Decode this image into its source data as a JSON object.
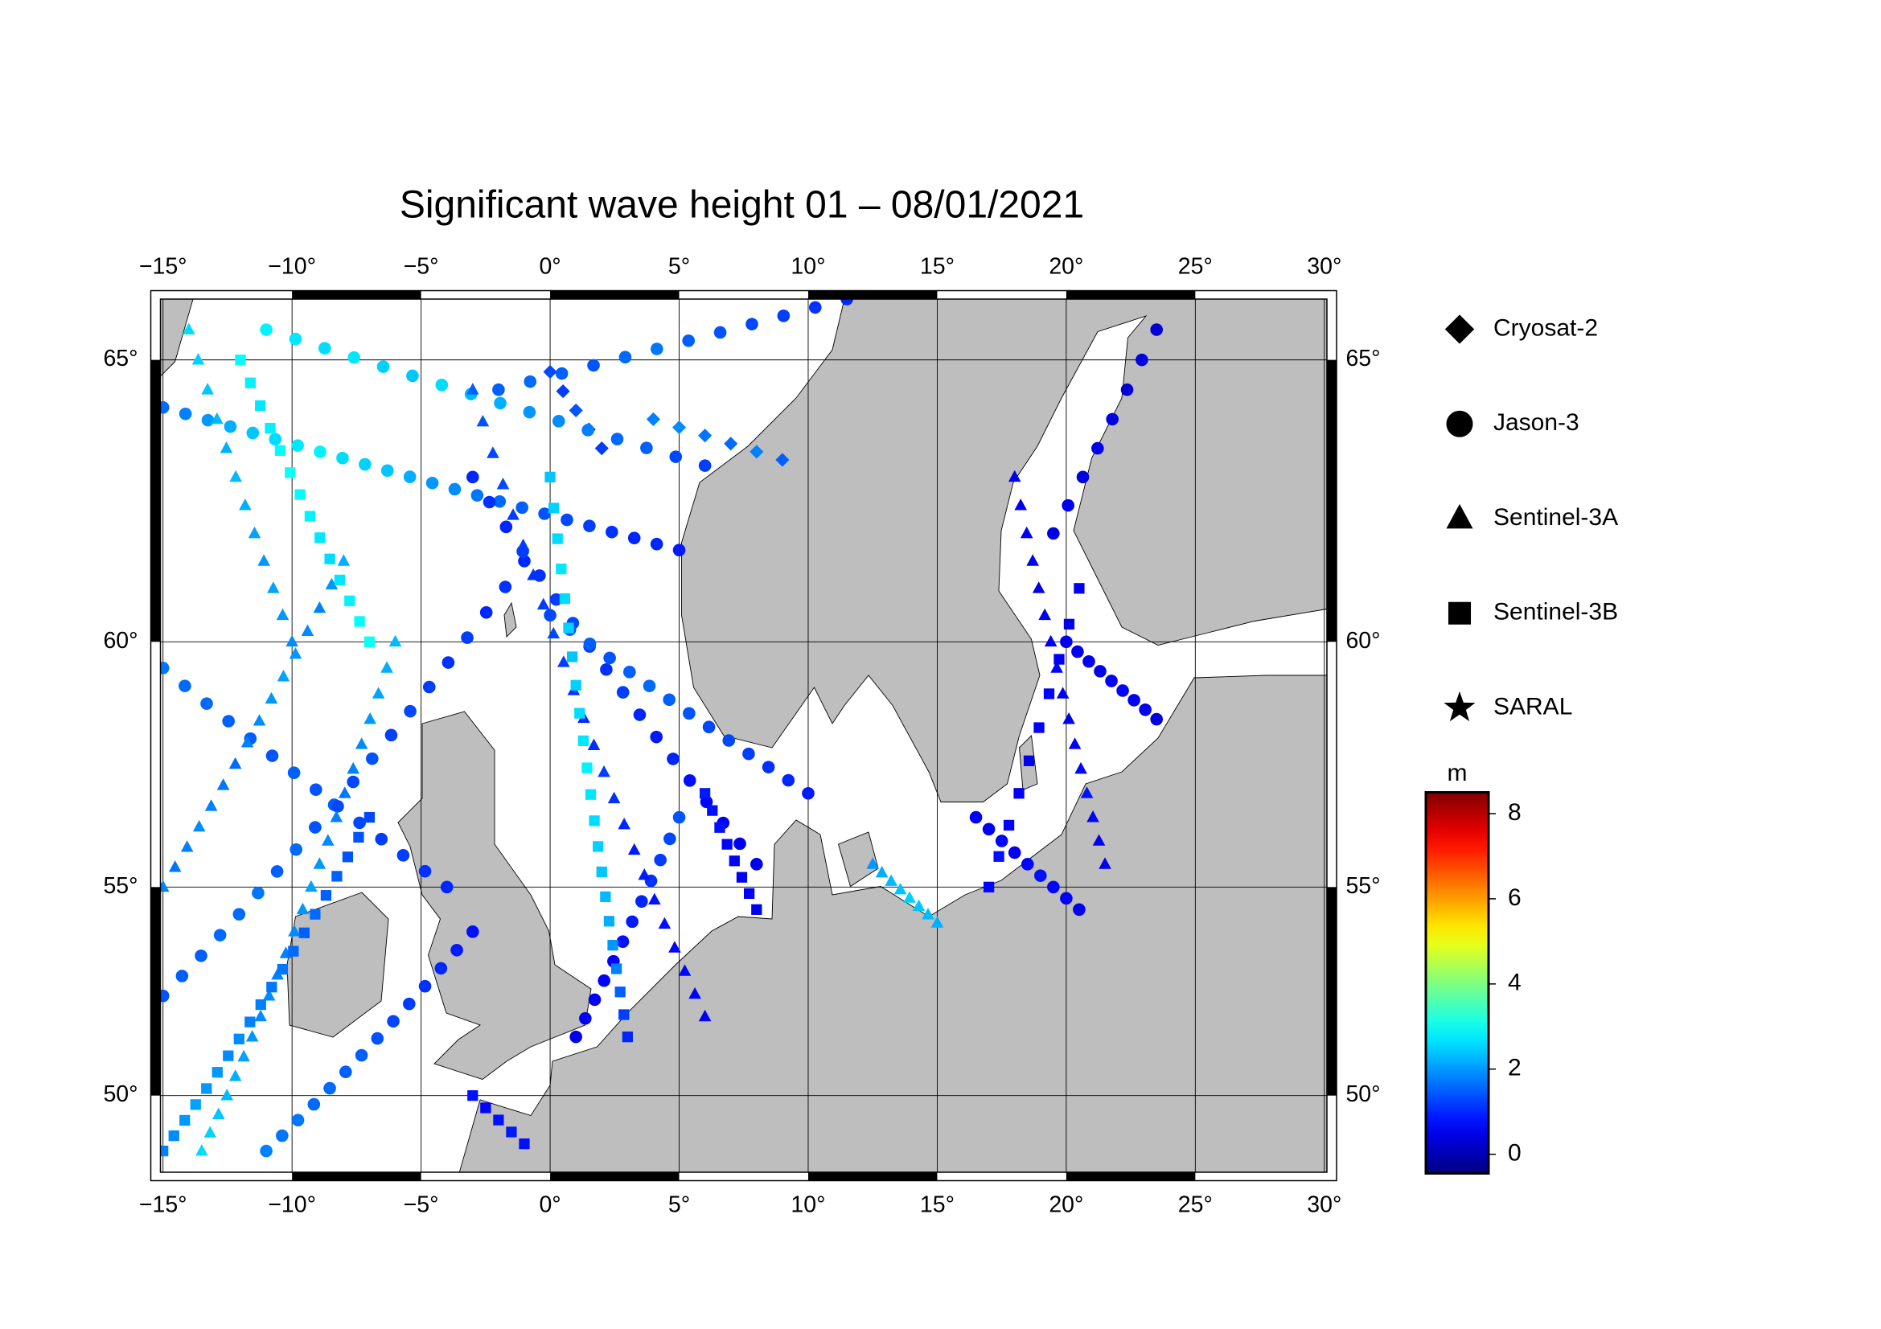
{
  "map": {
    "type": "scatter-map",
    "title": "Significant wave height 01 – 08/01/2021",
    "xlim": [
      -15.1,
      30.1
    ],
    "ylim": [
      47.9,
      66.0
    ],
    "xticks": [
      {
        "value": -15,
        "label": "−15°"
      },
      {
        "value": -10,
        "label": "−10°"
      },
      {
        "value": -5,
        "label": "−5°"
      },
      {
        "value": 0,
        "label": "0°"
      },
      {
        "value": 5,
        "label": "5°"
      },
      {
        "value": 10,
        "label": "10°"
      },
      {
        "value": 15,
        "label": "15°"
      },
      {
        "value": 20,
        "label": "20°"
      },
      {
        "value": 25,
        "label": "25°"
      },
      {
        "value": 30,
        "label": "30°"
      }
    ],
    "yticks": [
      {
        "value": 50,
        "label": "50°"
      },
      {
        "value": 55,
        "label": "55°"
      },
      {
        "value": 60,
        "label": "60°"
      },
      {
        "value": 65,
        "label": "65°"
      }
    ],
    "grid": true,
    "colorbar": {
      "unit": "m",
      "colormap": "jet",
      "clim": [
        -0.45,
        8.5
      ],
      "ticks": [
        0,
        2,
        4,
        6,
        8
      ]
    },
    "series": [
      {
        "name": "Cryosat-2",
        "marker": "diamond",
        "tracks": [
          {
            "lon": [
              4,
              9
            ],
            "lat": [
              64,
              63.3
            ],
            "values": [
              1.8,
              1.9,
              1.7,
              1.6,
              1.8,
              1.5
            ]
          },
          {
            "lon": [
              0,
              2
            ],
            "lat": [
              64.8,
              63.5
            ],
            "values": [
              1.3,
              1.2,
              1.4,
              1.1,
              1.2
            ]
          }
        ]
      },
      {
        "name": "Jason-3",
        "marker": "circle",
        "tracks": [
          {
            "lon": [
              -15,
              -1
            ],
            "lat": [
              52.5,
              61.5
            ],
            "values": [
              1.4,
              1.5,
              1.5,
              1.6,
              1.6,
              1.7,
              1.5,
              1.6,
              1.4,
              1.5,
              1.3,
              1.4,
              1.2,
              1.3,
              1.2,
              1.1,
              1.2,
              1.0,
              1.1,
              1.0
            ]
          },
          {
            "lon": [
              -15,
              5
            ],
            "lat": [
              64.2,
              61.7
            ],
            "values": [
              1.6,
              1.8,
              2.0,
              2.2,
              2.4,
              2.6,
              2.7,
              2.8,
              2.6,
              2.5,
              2.4,
              2.2,
              2.0,
              1.9,
              1.7,
              1.6,
              1.5,
              1.4,
              1.3,
              1.2,
              1.1,
              1.0,
              1.0,
              0.9
            ]
          },
          {
            "lon": [
              -15,
              -4
            ],
            "lat": [
              59.5,
              55
            ],
            "values": [
              1.7,
              1.6,
              1.6,
              1.5,
              1.5,
              1.4,
              1.5,
              1.4,
              1.3,
              1.3,
              1.2,
              1.2,
              1.1,
              1.0
            ]
          },
          {
            "lon": [
              -3,
              8
            ],
            "lat": [
              63,
              55.5
            ],
            "values": [
              1.0,
              1.1,
              1.0,
              1.2,
              1.1,
              1.2,
              1.3,
              1.2,
              1.1,
              1.2,
              1.0,
              0.9,
              1.0,
              0.8,
              0.7,
              0.6,
              0.6,
              0.5
            ]
          },
          {
            "lon": [
              0,
              10
            ],
            "lat": [
              60.5,
              57
            ],
            "values": [
              1.3,
              1.4,
              1.5,
              1.4,
              1.5,
              1.6,
              1.5,
              1.4,
              1.3,
              1.3,
              1.2,
              1.1,
              1.0,
              0.9
            ]
          },
          {
            "lon": [
              1,
              5
            ],
            "lat": [
              51.5,
              56.5
            ],
            "values": [
              0.5,
              0.6,
              0.6,
              0.7,
              0.7,
              0.8,
              0.9,
              1.0,
              1.1,
              1.2,
              1.3,
              1.4
            ]
          },
          {
            "lon": [
              -11,
              6
            ],
            "lat": [
              65.5,
              63.2
            ],
            "values": [
              2.8,
              2.7,
              2.6,
              2.7,
              2.5,
              2.4,
              2.6,
              2.3,
              2.2,
              2.0,
              1.9,
              1.8,
              1.6,
              1.5,
              1.3,
              1.2
            ]
          },
          {
            "lon": [
              -11,
              -3
            ],
            "lat": [
              48.5,
              54
            ],
            "values": [
              1.8,
              1.7,
              1.7,
              1.6,
              1.6,
              1.5,
              1.5,
              1.4,
              1.3,
              1.2,
              1.1,
              1.0,
              0.9,
              0.8
            ]
          },
          {
            "lon": [
              16.5,
              20.5
            ],
            "lat": [
              56.5,
              54.5
            ],
            "values": [
              0.6,
              0.6,
              0.7,
              0.6,
              0.7,
              0.8,
              0.7,
              0.6,
              0.5
            ]
          },
          {
            "lon": [
              20,
              23.5
            ],
            "lat": [
              60,
              58.5
            ],
            "values": [
              0.5,
              0.5,
              0.6,
              0.5,
              0.6,
              0.7,
              0.6,
              0.5,
              0.4
            ]
          },
          {
            "lon": [
              19.5,
              23.5
            ],
            "lat": [
              62,
              65.5
            ],
            "values": [
              0.4,
              0.5,
              0.4,
              0.5,
              0.4,
              0.3,
              0.4,
              0.3
            ]
          },
          {
            "lon": [
              -2,
              11.5
            ],
            "lat": [
              64.5,
              66
            ],
            "values": [
              1.5,
              1.6,
              1.5,
              1.4,
              1.6,
              1.7,
              1.5,
              1.4,
              1.3,
              1.2,
              1.1,
              1.0
            ]
          }
        ]
      },
      {
        "name": "Sentinel-3A",
        "marker": "triangle",
        "tracks": [
          {
            "lon": [
              -13.5,
              -6
            ],
            "lat": [
              48.5,
              60
            ],
            "values": [
              2.6,
              2.5,
              2.4,
              2.3,
              2.2,
              2.1,
              2.0,
              1.9,
              1.9,
              1.8,
              1.8,
              1.9,
              2.0,
              2.1,
              2.0,
              1.9,
              1.8,
              1.7,
              1.8,
              1.9,
              2.0,
              2.1,
              2.2,
              2.3
            ]
          },
          {
            "lon": [
              -15,
              -8
            ],
            "lat": [
              55,
              61.5
            ],
            "values": [
              1.8,
              1.7,
              1.8,
              1.9,
              1.8,
              1.7,
              1.6,
              1.8,
              1.9,
              2.0,
              2.1,
              2.0,
              1.9,
              1.8,
              2.0,
              2.2
            ]
          },
          {
            "lon": [
              -3,
              6
            ],
            "lat": [
              64.5,
              52
            ],
            "values": [
              1.5,
              1.4,
              1.3,
              1.3,
              1.2,
              1.2,
              1.1,
              1.2,
              1.3,
              1.2,
              1.1,
              1.0,
              1.1,
              1.2,
              1.1,
              1.0,
              0.9,
              0.9,
              0.8,
              0.8,
              0.7,
              0.7,
              0.6,
              0.6
            ]
          },
          {
            "lon": [
              18,
              21.5
            ],
            "lat": [
              63,
              55.5
            ],
            "values": [
              0.5,
              0.5,
              0.6,
              0.5,
              0.4,
              0.5,
              0.6,
              0.7,
              0.6,
              0.5,
              0.6,
              0.7,
              0.8,
              0.7,
              0.6,
              0.5
            ]
          },
          {
            "lon": [
              12.5,
              15
            ],
            "lat": [
              55.5,
              54.2
            ],
            "values": [
              2.0,
              2.2,
              2.3,
              2.4,
              2.5,
              2.4,
              2.3,
              2.2
            ]
          },
          {
            "lon": [
              -14,
              -10
            ],
            "lat": [
              65.5,
              60
            ],
            "values": [
              2.6,
              2.5,
              2.4,
              2.3,
              2.2,
              2.3,
              2.2,
              2.1,
              2.0,
              2.1,
              2.0,
              1.9
            ]
          }
        ]
      },
      {
        "name": "Sentinel-3B",
        "marker": "square",
        "tracks": [
          {
            "lon": [
              -7,
              -15
            ],
            "lat": [
              56.5,
              48.5
            ],
            "values": [
              1.3,
              1.4,
              1.4,
              1.5,
              1.5,
              1.6,
              1.5,
              1.6,
              1.7,
              1.7,
              1.8,
              1.8,
              1.9,
              1.9,
              2.0,
              2.0,
              2.1,
              2.0,
              1.9,
              1.8
            ]
          },
          {
            "lon": [
              0,
              3
            ],
            "lat": [
              63,
              51.5
            ],
            "values": [
              2.4,
              2.5,
              2.6,
              2.7,
              2.6,
              2.5,
              2.4,
              2.5,
              2.6,
              2.7,
              2.8,
              2.7,
              2.6,
              2.5,
              2.4,
              2.3,
              2.2,
              2.0,
              1.8,
              1.5,
              1.2,
              1.0
            ]
          },
          {
            "lon": [
              -3,
              -1
            ],
            "lat": [
              50,
              48.7
            ],
            "values": [
              0.8,
              0.7,
              0.8,
              0.9,
              0.8
            ]
          },
          {
            "lon": [
              -12,
              -7
            ],
            "lat": [
              65,
              60
            ],
            "values": [
              2.9,
              2.8,
              2.7,
              2.8,
              2.9,
              3.0,
              2.9,
              2.8,
              2.7,
              2.6,
              2.7,
              2.8,
              2.9,
              3.0
            ]
          },
          {
            "lon": [
              6,
              8
            ],
            "lat": [
              57,
              54.5
            ],
            "values": [
              0.9,
              0.8,
              0.8,
              0.7,
              0.7,
              0.6,
              0.6,
              0.5
            ]
          },
          {
            "lon": [
              20.5,
              17
            ],
            "lat": [
              61,
              55
            ],
            "values": [
              0.6,
              0.5,
              0.6,
              0.7,
              0.6,
              0.5,
              0.6,
              0.7,
              0.8,
              0.7
            ]
          }
        ]
      },
      {
        "name": "SARAL",
        "marker": "star",
        "tracks": []
      }
    ]
  }
}
